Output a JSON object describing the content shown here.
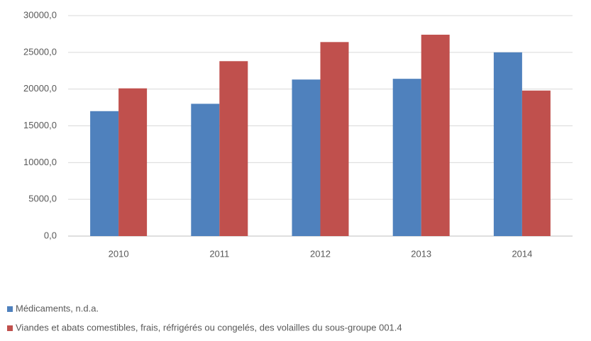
{
  "chart_data": {
    "type": "bar",
    "categories": [
      "2010",
      "2011",
      "2012",
      "2013",
      "2014"
    ],
    "series": [
      {
        "name": "Médicaments, n.d.a.",
        "color": "#4f81bd",
        "values": [
          17000,
          18000,
          21300,
          21400,
          25000
        ]
      },
      {
        "name": "Viandes et abats comestibles, frais, réfrigérés ou congelés, des volailles du sous-groupe 001.4",
        "color": "#c0504d",
        "values": [
          20100,
          23800,
          26400,
          27400,
          19800
        ]
      }
    ],
    "ylim": [
      0,
      30000
    ],
    "yticks": [
      {
        "value": 0,
        "label": "0,0"
      },
      {
        "value": 5000,
        "label": "5000,0"
      },
      {
        "value": 10000,
        "label": "10000,0"
      },
      {
        "value": 15000,
        "label": "15000,0"
      },
      {
        "value": 20000,
        "label": "20000,0"
      },
      {
        "value": 25000,
        "label": "25000,0"
      },
      {
        "value": 30000,
        "label": "30000,0"
      }
    ],
    "grid": true,
    "legend": "bottom"
  }
}
